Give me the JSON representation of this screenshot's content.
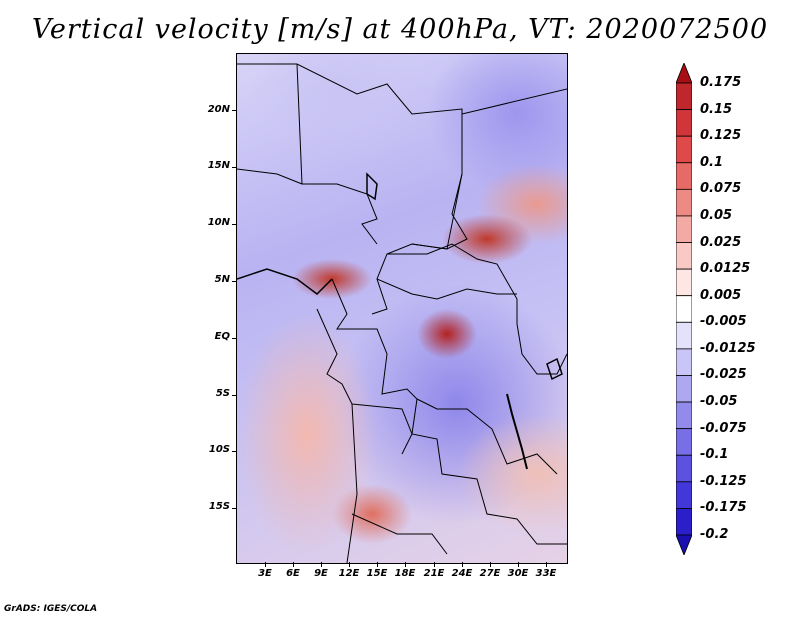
{
  "title": "Vertical velocity [m/s] at 400hPa, VT: 2020072500",
  "footer": "GrADS: IGES/COLA",
  "map": {
    "y_labels": [
      "20N",
      "15N",
      "10N",
      "5N",
      "EQ",
      "5S",
      "10S",
      "15S"
    ],
    "x_labels": [
      "3E",
      "6E",
      "9E",
      "12E",
      "15E",
      "18E",
      "21E",
      "24E",
      "27E",
      "30E",
      "33E"
    ]
  },
  "colorbar": {
    "labels": [
      "0.175",
      "0.15",
      "0.125",
      "0.1",
      "0.075",
      "0.05",
      "0.025",
      "0.0125",
      "0.005",
      "-0.005",
      "-0.0125",
      "-0.025",
      "-0.05",
      "-0.075",
      "-0.1",
      "-0.125",
      "-0.175",
      "-0.2"
    ],
    "colors": [
      "#a50f15",
      "#c0272d",
      "#d0353a",
      "#de4a4a",
      "#e66a66",
      "#ee8a84",
      "#f4aaa4",
      "#f9cac5",
      "#fde6e3",
      "#ffffff",
      "#e4e2fb",
      "#c9c5f6",
      "#aea8f1",
      "#938bec",
      "#786ee6",
      "#5d52e0",
      "#4237d9",
      "#2b1fc9",
      "#1a0fb0"
    ]
  }
}
